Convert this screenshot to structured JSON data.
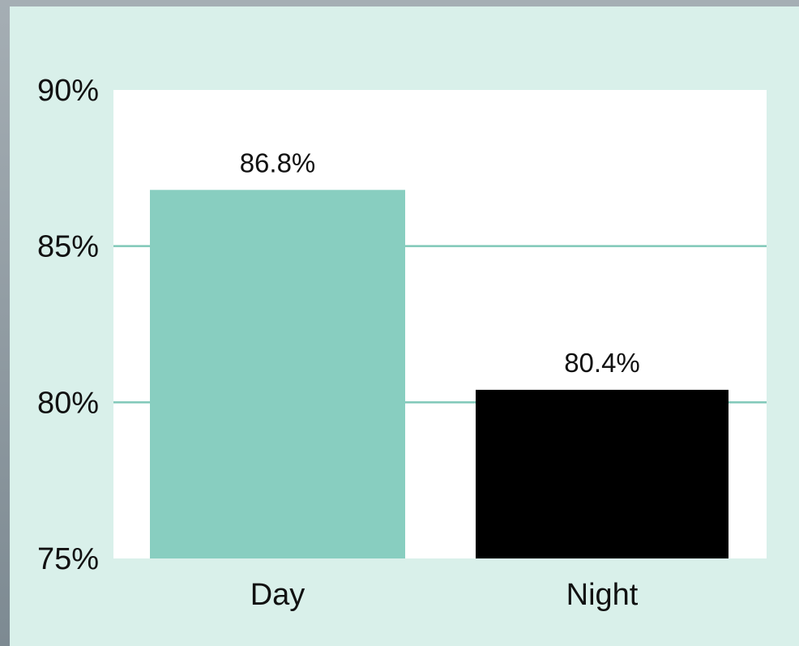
{
  "chart_data": {
    "type": "bar",
    "categories": [
      "Day",
      "Night"
    ],
    "values": [
      86.8,
      80.4
    ],
    "value_labels": [
      "86.8%",
      "80.4%"
    ],
    "ylim": [
      75,
      90
    ],
    "y_ticks": [
      75,
      80,
      85,
      90
    ],
    "y_tick_labels": [
      "75%",
      "80%",
      "85%",
      "90%"
    ],
    "bar_colors": [
      "#88cec0",
      "#000000"
    ],
    "gridline_color": "#7fc8b8",
    "panel_color": "#d9f0ea",
    "plot_background": "#ffffff",
    "grid": true,
    "legend": "none"
  }
}
